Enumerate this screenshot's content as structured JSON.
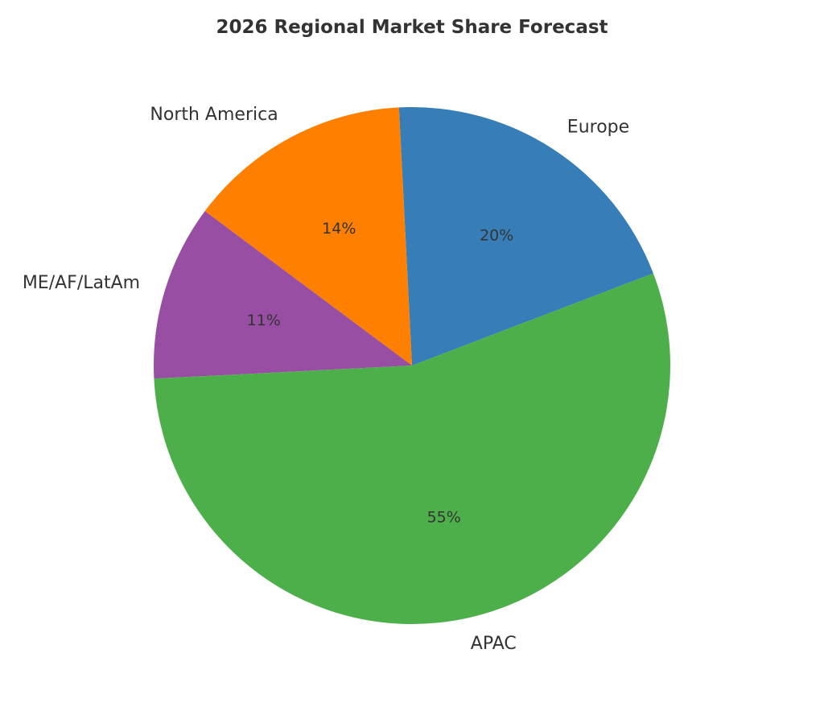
{
  "chart_data": {
    "type": "pie",
    "title": "2026 Regional Market Share Forecast",
    "categories": [
      "Europe",
      "North America",
      "ME/AF/LatAm",
      "APAC"
    ],
    "values": [
      20,
      14,
      11,
      55
    ],
    "value_labels": [
      "20%",
      "14%",
      "11%",
      "55%"
    ],
    "colors": [
      "#377eb8",
      "#ff7f00",
      "#984ea3",
      "#4daf4a"
    ],
    "legend": "none"
  }
}
